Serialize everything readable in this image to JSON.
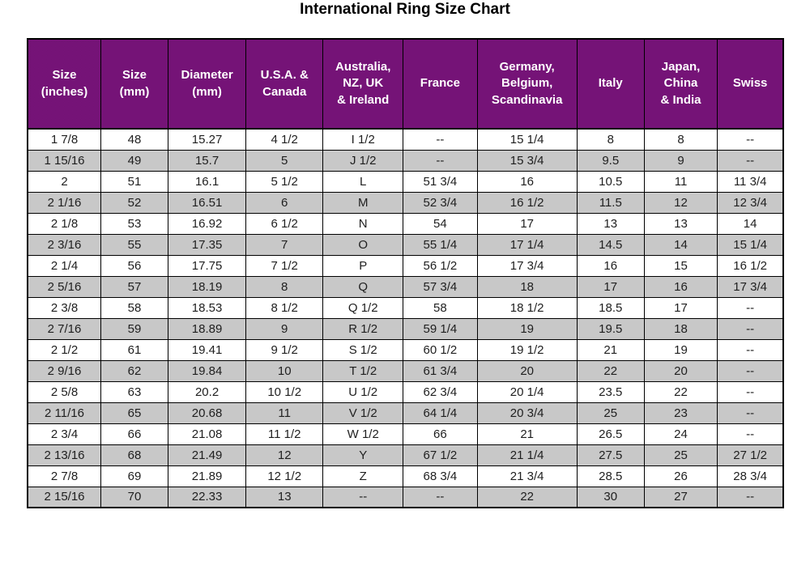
{
  "title": "International Ring Size Chart",
  "colors": {
    "header_bg": "#7c177d",
    "header_text": "#ffffff",
    "row_bg": "#ffffff",
    "row_alt_bg": "#cdcdcd",
    "border": "#000000",
    "cell_text": "#1f1f1f",
    "title_text": "#000000"
  },
  "chart_data": {
    "type": "table",
    "title": "International Ring Size Chart",
    "columns": [
      "Size\n(inches)",
      "Size\n(mm)",
      "Diameter\n(mm)",
      "U.S.A. &\nCanada",
      "Australia,\nNZ, UK\n& Ireland",
      "France",
      "Germany,\nBelgium,\nScandinavia",
      "Italy",
      "Japan,\nChina\n& India",
      "Swiss"
    ],
    "col_widths_pct": [
      9.7,
      8.9,
      10.3,
      10.2,
      10.6,
      9.8,
      13.2,
      8.9,
      9.7,
      8.7
    ],
    "zebra": "alternating rows, first row white, second shaded gray",
    "rows": [
      [
        "1 7/8",
        "48",
        "15.27",
        "4 1/2",
        "I 1/2",
        "--",
        "15 1/4",
        "8",
        "8",
        "--"
      ],
      [
        "1 15/16",
        "49",
        "15.7",
        "5",
        "J 1/2",
        "--",
        "15 3/4",
        "9.5",
        "9",
        "--"
      ],
      [
        "2",
        "51",
        "16.1",
        "5 1/2",
        "L",
        "51 3/4",
        "16",
        "10.5",
        "11",
        "11 3/4"
      ],
      [
        "2 1/16",
        "52",
        "16.51",
        "6",
        "M",
        "52 3/4",
        "16 1/2",
        "11.5",
        "12",
        "12 3/4"
      ],
      [
        "2 1/8",
        "53",
        "16.92",
        "6 1/2",
        "N",
        "54",
        "17",
        "13",
        "13",
        "14"
      ],
      [
        "2 3/16",
        "55",
        "17.35",
        "7",
        "O",
        "55 1/4",
        "17 1/4",
        "14.5",
        "14",
        "15 1/4"
      ],
      [
        "2 1/4",
        "56",
        "17.75",
        "7 1/2",
        "P",
        "56 1/2",
        "17 3/4",
        "16",
        "15",
        "16 1/2"
      ],
      [
        "2 5/16",
        "57",
        "18.19",
        "8",
        "Q",
        "57 3/4",
        "18",
        "17",
        "16",
        "17 3/4"
      ],
      [
        "2 3/8",
        "58",
        "18.53",
        "8 1/2",
        "Q 1/2",
        "58",
        "18 1/2",
        "18.5",
        "17",
        "--"
      ],
      [
        "2 7/16",
        "59",
        "18.89",
        "9",
        "R 1/2",
        "59 1/4",
        "19",
        "19.5",
        "18",
        "--"
      ],
      [
        "2 1/2",
        "61",
        "19.41",
        "9 1/2",
        "S 1/2",
        "60 1/2",
        "19 1/2",
        "21",
        "19",
        "--"
      ],
      [
        "2 9/16",
        "62",
        "19.84",
        "10",
        "T 1/2",
        "61 3/4",
        "20",
        "22",
        "20",
        "--"
      ],
      [
        "2 5/8",
        "63",
        "20.2",
        "10 1/2",
        "U 1/2",
        "62 3/4",
        "20 1/4",
        "23.5",
        "22",
        "--"
      ],
      [
        "2 11/16",
        "65",
        "20.68",
        "11",
        "V 1/2",
        "64 1/4",
        "20 3/4",
        "25",
        "23",
        "--"
      ],
      [
        "2 3/4",
        "66",
        "21.08",
        "11 1/2",
        "W 1/2",
        "66",
        "21",
        "26.5",
        "24",
        "--"
      ],
      [
        "2 13/16",
        "68",
        "21.49",
        "12",
        "Y",
        "67 1/2",
        "21 1/4",
        "27.5",
        "25",
        "27 1/2"
      ],
      [
        "2 7/8",
        "69",
        "21.89",
        "12 1/2",
        "Z",
        "68 3/4",
        "21 3/4",
        "28.5",
        "26",
        "28 3/4"
      ],
      [
        "2 15/16",
        "70",
        "22.33",
        "13",
        "--",
        "--",
        "22",
        "30",
        "27",
        "--"
      ]
    ]
  }
}
